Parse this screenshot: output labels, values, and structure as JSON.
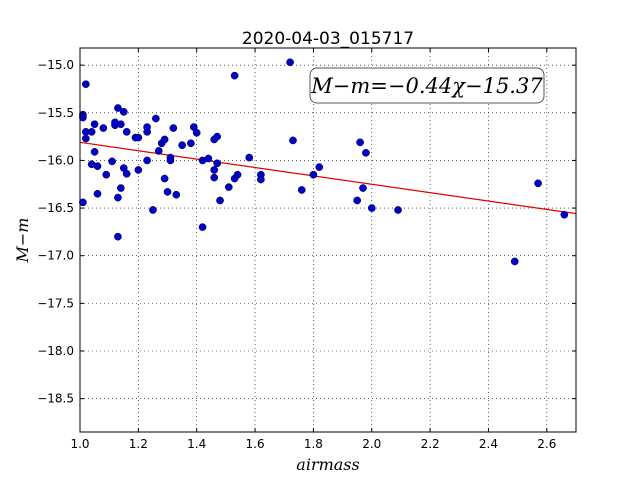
{
  "chart_data": {
    "type": "scatter",
    "title": "2020-04-03_015717",
    "xlabel": "airmass",
    "ylabel": "M−m",
    "xlim": [
      1.0,
      2.7
    ],
    "ylim": [
      -18.85,
      -14.82
    ],
    "y_inverted": true,
    "grid": true,
    "x_ticks": [
      "1.0",
      "1.2",
      "1.4",
      "1.6",
      "1.8",
      "2.0",
      "2.2",
      "2.4",
      "2.6"
    ],
    "y_ticks": [
      "−15.0",
      "−15.5",
      "−16.0",
      "−16.5",
      "−17.0",
      "−17.5",
      "−18.0",
      "−18.5"
    ],
    "annotation": "M−m=−0.44χ−15.37",
    "fit_line": {
      "slope": -0.44,
      "intercept": -15.37,
      "color": "#e00000"
    },
    "point_color": "#0000c8",
    "points": [
      [
        1.01,
        -15.52
      ],
      [
        1.01,
        -15.55
      ],
      [
        1.02,
        -15.2
      ],
      [
        1.02,
        -15.7
      ],
      [
        1.02,
        -15.77
      ],
      [
        1.01,
        -16.44
      ],
      [
        1.04,
        -15.7
      ],
      [
        1.04,
        -16.04
      ],
      [
        1.05,
        -15.62
      ],
      [
        1.05,
        -15.91
      ],
      [
        1.06,
        -16.06
      ],
      [
        1.06,
        -16.35
      ],
      [
        1.08,
        -15.66
      ],
      [
        1.09,
        -16.15
      ],
      [
        1.11,
        -16.01
      ],
      [
        1.12,
        -15.63
      ],
      [
        1.12,
        -15.6
      ],
      [
        1.13,
        -15.45
      ],
      [
        1.14,
        -15.62
      ],
      [
        1.15,
        -15.49
      ],
      [
        1.16,
        -15.7
      ],
      [
        1.13,
        -16.39
      ],
      [
        1.14,
        -16.29
      ],
      [
        1.15,
        -16.08
      ],
      [
        1.16,
        -16.14
      ],
      [
        1.13,
        -16.8
      ],
      [
        1.19,
        -15.76
      ],
      [
        1.2,
        -15.76
      ],
      [
        1.2,
        -16.1
      ],
      [
        1.23,
        -15.65
      ],
      [
        1.23,
        -15.7
      ],
      [
        1.23,
        -16.0
      ],
      [
        1.25,
        -16.52
      ],
      [
        1.26,
        -15.56
      ],
      [
        1.27,
        -15.9
      ],
      [
        1.28,
        -15.82
      ],
      [
        1.29,
        -15.78
      ],
      [
        1.29,
        -16.19
      ],
      [
        1.3,
        -16.33
      ],
      [
        1.31,
        -15.97
      ],
      [
        1.31,
        -16.0
      ],
      [
        1.32,
        -15.66
      ],
      [
        1.33,
        -16.36
      ],
      [
        1.35,
        -15.84
      ],
      [
        1.38,
        -15.82
      ],
      [
        1.39,
        -15.65
      ],
      [
        1.4,
        -15.71
      ],
      [
        1.42,
        -16.0
      ],
      [
        1.42,
        -16.7
      ],
      [
        1.44,
        -15.98
      ],
      [
        1.46,
        -15.78
      ],
      [
        1.46,
        -16.1
      ],
      [
        1.46,
        -16.18
      ],
      [
        1.47,
        -16.03
      ],
      [
        1.47,
        -15.75
      ],
      [
        1.48,
        -16.42
      ],
      [
        1.51,
        -16.28
      ],
      [
        1.53,
        -16.19
      ],
      [
        1.53,
        -15.11
      ],
      [
        1.54,
        -16.15
      ],
      [
        1.58,
        -15.97
      ],
      [
        1.62,
        -16.15
      ],
      [
        1.62,
        -16.2
      ],
      [
        1.72,
        -14.97
      ],
      [
        1.73,
        -15.79
      ],
      [
        1.76,
        -16.31
      ],
      [
        1.8,
        -16.15
      ],
      [
        1.82,
        -16.07
      ],
      [
        1.95,
        -16.42
      ],
      [
        1.96,
        -15.81
      ],
      [
        1.97,
        -16.29
      ],
      [
        1.98,
        -15.92
      ],
      [
        2.0,
        -16.5
      ],
      [
        2.09,
        -16.52
      ],
      [
        2.49,
        -17.06
      ],
      [
        2.57,
        -16.24
      ],
      [
        2.66,
        -16.57
      ]
    ]
  }
}
